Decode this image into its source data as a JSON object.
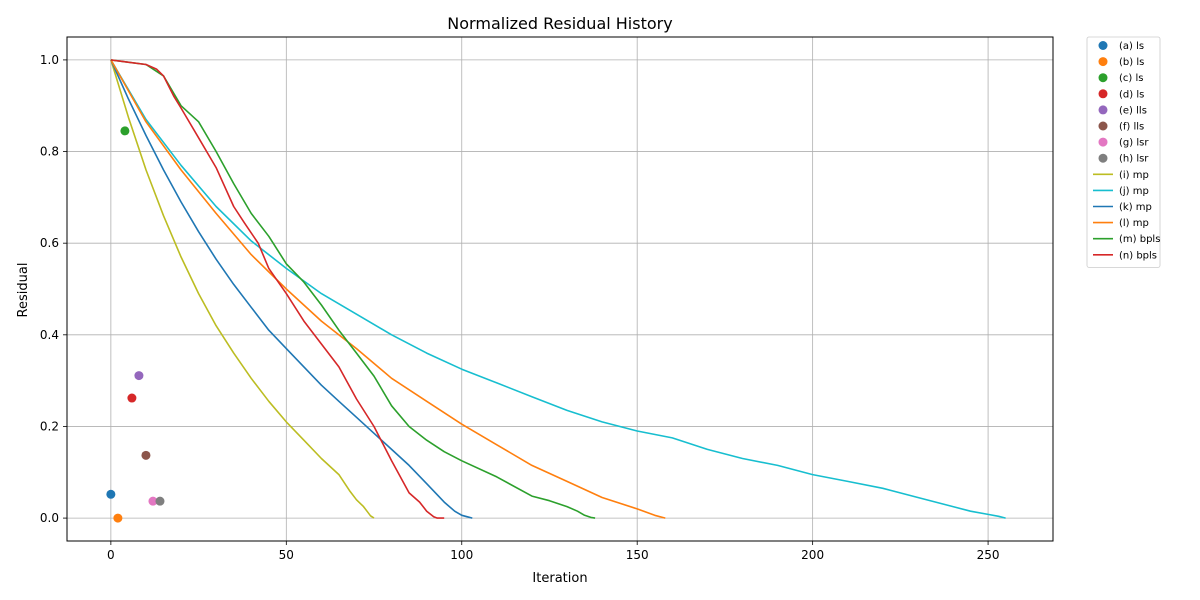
{
  "chart_data": {
    "type": "line",
    "title": "Normalized Residual History",
    "xlabel": "Iteration",
    "ylabel": "Residual",
    "xlim": [
      -12.5,
      268.5
    ],
    "ylim": [
      -0.05,
      1.05
    ],
    "xticks": [
      0,
      50,
      100,
      150,
      200,
      250
    ],
    "yticks": [
      0.0,
      0.2,
      0.4,
      0.6,
      0.8,
      1.0
    ],
    "xtick_labels": [
      "0",
      "50",
      "100",
      "150",
      "200",
      "250"
    ],
    "ytick_labels": [
      "0.0",
      "0.2",
      "0.4",
      "0.6",
      "0.8",
      "1.0"
    ],
    "grid": true,
    "legend_placement": "outside-top-right",
    "series": [
      {
        "name": "(a) ls",
        "kind": "point",
        "color": "#1f77b4",
        "x": [
          0
        ],
        "y": [
          0.052
        ]
      },
      {
        "name": "(b) ls",
        "kind": "point",
        "color": "#ff7f0e",
        "x": [
          2
        ],
        "y": [
          0.0
        ]
      },
      {
        "name": "(c) ls",
        "kind": "point",
        "color": "#2ca02c",
        "x": [
          4
        ],
        "y": [
          0.845
        ]
      },
      {
        "name": "(d) ls",
        "kind": "point",
        "color": "#d62728",
        "x": [
          6
        ],
        "y": [
          0.262
        ]
      },
      {
        "name": "(e) lls",
        "kind": "point",
        "color": "#9467bd",
        "x": [
          8
        ],
        "y": [
          0.311
        ]
      },
      {
        "name": "(f) lls",
        "kind": "point",
        "color": "#8c564b",
        "x": [
          10
        ],
        "y": [
          0.137
        ]
      },
      {
        "name": "(g) lsr",
        "kind": "point",
        "color": "#e377c2",
        "x": [
          12
        ],
        "y": [
          0.037
        ]
      },
      {
        "name": "(h) lsr",
        "kind": "point",
        "color": "#7f7f7f",
        "x": [
          14
        ],
        "y": [
          0.037
        ]
      },
      {
        "name": "(i) mp",
        "kind": "line",
        "color": "#bcbd22",
        "x": [
          0,
          5,
          10,
          15,
          20,
          25,
          30,
          35,
          40,
          45,
          50,
          55,
          60,
          65,
          68,
          70,
          72,
          73,
          74,
          75
        ],
        "y": [
          1.0,
          0.875,
          0.76,
          0.66,
          0.57,
          0.49,
          0.42,
          0.36,
          0.305,
          0.255,
          0.21,
          0.17,
          0.13,
          0.095,
          0.06,
          0.04,
          0.025,
          0.015,
          0.005,
          0.0
        ]
      },
      {
        "name": "(j) mp",
        "kind": "line",
        "color": "#17becf",
        "x": [
          0,
          10,
          20,
          30,
          40,
          50,
          60,
          70,
          80,
          90,
          100,
          110,
          120,
          130,
          140,
          150,
          160,
          170,
          180,
          190,
          200,
          210,
          220,
          230,
          240,
          245,
          250,
          253,
          255
        ],
        "y": [
          1.0,
          0.87,
          0.77,
          0.68,
          0.605,
          0.545,
          0.49,
          0.445,
          0.4,
          0.36,
          0.325,
          0.295,
          0.265,
          0.235,
          0.21,
          0.19,
          0.175,
          0.15,
          0.13,
          0.115,
          0.095,
          0.08,
          0.065,
          0.045,
          0.025,
          0.015,
          0.008,
          0.004,
          0.0
        ]
      },
      {
        "name": "(k) mp",
        "kind": "line",
        "color": "#1f77b4",
        "x": [
          0,
          5,
          10,
          15,
          20,
          25,
          30,
          35,
          40,
          45,
          50,
          55,
          60,
          65,
          70,
          75,
          80,
          85,
          90,
          95,
          98,
          100,
          102,
          103
        ],
        "y": [
          1.0,
          0.915,
          0.835,
          0.76,
          0.69,
          0.625,
          0.565,
          0.51,
          0.46,
          0.41,
          0.37,
          0.33,
          0.29,
          0.255,
          0.22,
          0.185,
          0.15,
          0.115,
          0.075,
          0.035,
          0.015,
          0.006,
          0.002,
          0.0
        ]
      },
      {
        "name": "(l) mp",
        "kind": "line",
        "color": "#ff7f0e",
        "x": [
          0,
          10,
          20,
          30,
          40,
          50,
          60,
          70,
          80,
          90,
          100,
          110,
          120,
          130,
          140,
          150,
          155,
          158
        ],
        "y": [
          1.0,
          0.865,
          0.76,
          0.665,
          0.575,
          0.5,
          0.43,
          0.37,
          0.305,
          0.255,
          0.205,
          0.16,
          0.115,
          0.08,
          0.045,
          0.02,
          0.006,
          0.0
        ]
      },
      {
        "name": "(m) bpls",
        "kind": "line",
        "color": "#2ca02c",
        "x": [
          0,
          10,
          15,
          20,
          25,
          30,
          35,
          40,
          45,
          50,
          55,
          60,
          65,
          70,
          75,
          80,
          85,
          90,
          95,
          100,
          110,
          120,
          125,
          130,
          133,
          135,
          137,
          138
        ],
        "y": [
          1.0,
          0.99,
          0.965,
          0.9,
          0.865,
          0.8,
          0.73,
          0.665,
          0.615,
          0.555,
          0.515,
          0.465,
          0.41,
          0.36,
          0.31,
          0.245,
          0.2,
          0.17,
          0.145,
          0.125,
          0.09,
          0.048,
          0.038,
          0.025,
          0.015,
          0.006,
          0.001,
          0.0
        ]
      },
      {
        "name": "(n) bpls",
        "kind": "line",
        "color": "#d62728",
        "x": [
          0,
          10,
          13,
          15,
          18,
          20,
          25,
          30,
          35,
          38,
          42,
          45,
          50,
          55,
          60,
          65,
          70,
          75,
          80,
          85,
          88,
          90,
          92,
          93,
          95
        ],
        "y": [
          1.0,
          0.99,
          0.98,
          0.965,
          0.92,
          0.895,
          0.83,
          0.765,
          0.68,
          0.645,
          0.6,
          0.545,
          0.49,
          0.43,
          0.38,
          0.33,
          0.26,
          0.2,
          0.125,
          0.055,
          0.035,
          0.015,
          0.003,
          0.0,
          0.0
        ]
      }
    ]
  }
}
